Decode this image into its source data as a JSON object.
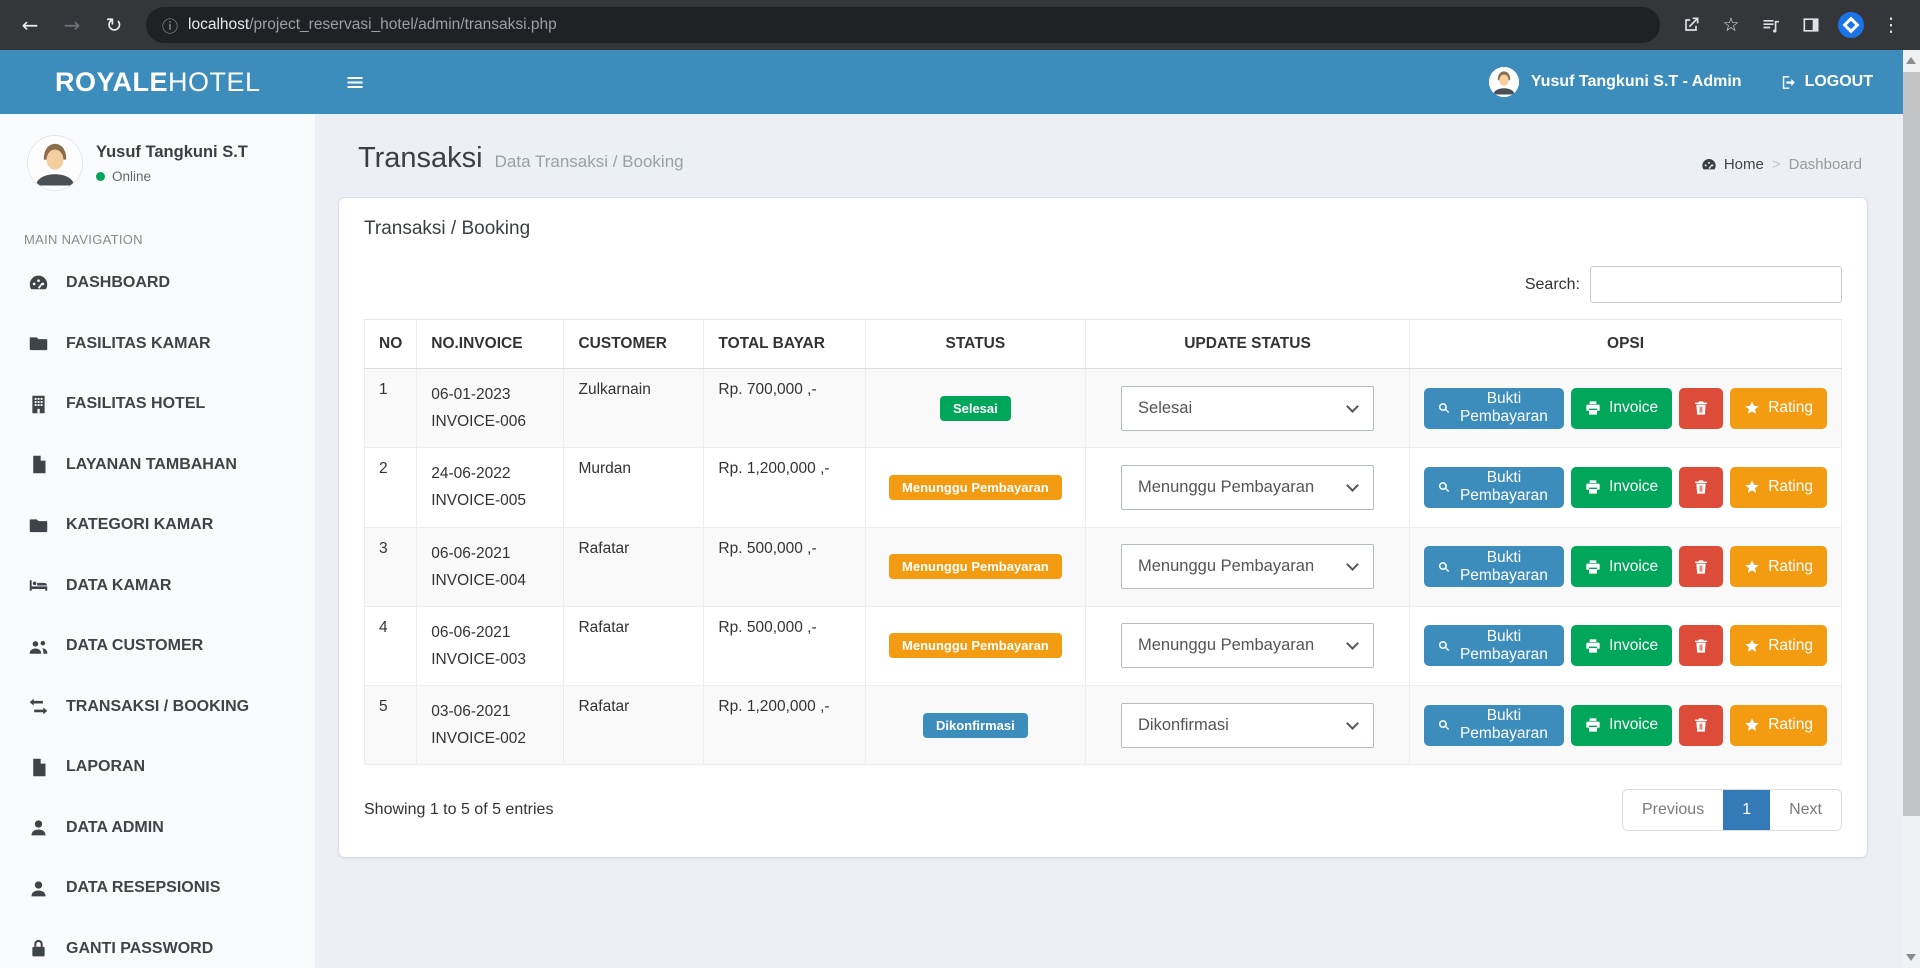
{
  "browser": {
    "url_host": "localhost",
    "url_path": "/project_reservasi_hotel/admin/transaksi.php"
  },
  "navbar": {
    "brand_bold": "ROYALE",
    "brand_light": "HOTEL",
    "user_label": "Yusuf Tangkuni S.T - Admin",
    "logout_label": "LOGOUT"
  },
  "sidebar": {
    "user_name": "Yusuf Tangkuni S.T",
    "user_status": "Online",
    "section_label": "MAIN NAVIGATION",
    "items": [
      {
        "label": "DASHBOARD",
        "icon": "dashboard"
      },
      {
        "label": "FASILITAS KAMAR",
        "icon": "folder"
      },
      {
        "label": "FASILITAS HOTEL",
        "icon": "building"
      },
      {
        "label": "LAYANAN TAMBAHAN",
        "icon": "file"
      },
      {
        "label": "KATEGORI KAMAR",
        "icon": "folder"
      },
      {
        "label": "DATA KAMAR",
        "icon": "bed"
      },
      {
        "label": "DATA CUSTOMER",
        "icon": "users"
      },
      {
        "label": "TRANSAKSI / BOOKING",
        "icon": "exchange"
      },
      {
        "label": "LAPORAN",
        "icon": "file"
      },
      {
        "label": "DATA ADMIN",
        "icon": "user"
      },
      {
        "label": "DATA RESEPSIONIS",
        "icon": "user"
      },
      {
        "label": "GANTI PASSWORD",
        "icon": "lock"
      }
    ]
  },
  "content": {
    "page_title": "Transaksi",
    "page_subtitle": "Data Transaksi / Booking",
    "breadcrumb": {
      "home": "Home",
      "current": "Dashboard"
    },
    "card_title": "Transaksi / Booking",
    "search_label": "Search:",
    "table": {
      "headers": [
        "NO",
        "NO.INVOICE",
        "CUSTOMER",
        "TOTAL BAYAR",
        "STATUS",
        "UPDATE STATUS",
        "OPSI"
      ],
      "buttons": {
        "bukti": "Bukti Pembayaran",
        "invoice": "Invoice",
        "rating": "Rating"
      },
      "rows": [
        {
          "no": "1",
          "invoice_date": "06-01-2023",
          "invoice_no": "INVOICE-006",
          "customer": "Zulkarnain",
          "total": "Rp. 700,000 ,-",
          "status": "Selesai",
          "status_key": "selesai",
          "select_value": "Selesai"
        },
        {
          "no": "2",
          "invoice_date": "24-06-2022",
          "invoice_no": "INVOICE-005",
          "customer": "Murdan",
          "total": "Rp. 1,200,000 ,-",
          "status": "Menunggu Pembayaran",
          "status_key": "menunggu",
          "select_value": "Menunggu Pembayaran"
        },
        {
          "no": "3",
          "invoice_date": "06-06-2021",
          "invoice_no": "INVOICE-004",
          "customer": "Rafatar",
          "total": "Rp. 500,000 ,-",
          "status": "Menunggu Pembayaran",
          "status_key": "menunggu",
          "select_value": "Menunggu Pembayaran"
        },
        {
          "no": "4",
          "invoice_date": "06-06-2021",
          "invoice_no": "INVOICE-003",
          "customer": "Rafatar",
          "total": "Rp. 500,000 ,-",
          "status": "Menunggu Pembayaran",
          "status_key": "menunggu",
          "select_value": "Menunggu Pembayaran"
        },
        {
          "no": "5",
          "invoice_date": "03-06-2021",
          "invoice_no": "INVOICE-002",
          "customer": "Rafatar",
          "total": "Rp. 1,200,000 ,-",
          "status": "Dikonfirmasi",
          "status_key": "dikonfirmasi",
          "select_value": "Dikonfirmasi"
        }
      ]
    },
    "footer": {
      "showing": "Showing 1 to 5 of 5 entries",
      "previous": "Previous",
      "page": "1",
      "next": "Next"
    }
  },
  "colors": {
    "navbar": "#3c8dbc",
    "status": {
      "selesai": "#00a65a",
      "menunggu": "#f39c12",
      "dikonfirmasi": "#3c8dbc"
    },
    "buttons": {
      "primary": "#3c8dbc",
      "success": "#00a65a",
      "danger": "#dd4b39",
      "warning": "#f39c12"
    },
    "pagination_active": "#337ab7"
  }
}
